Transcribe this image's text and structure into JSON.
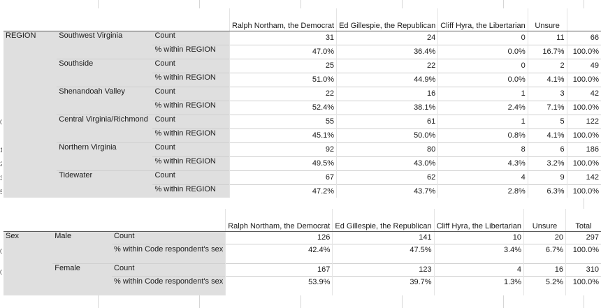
{
  "table1": {
    "headers": [
      "Ralph Northam, the Democrat",
      "Ed Gillespie, the Republican",
      "Cliff Hyra, the Libertarian",
      "Unsure",
      ""
    ],
    "group_label": "REGION",
    "rows": [
      {
        "category": "Southwest Virginia",
        "stat": "Count",
        "values": [
          "31",
          "24",
          "0",
          "11",
          "66"
        ]
      },
      {
        "category": "",
        "stat": "% within REGION",
        "values": [
          "47.0%",
          "36.4%",
          "0.0%",
          "16.7%",
          "100.0%"
        ]
      },
      {
        "category": "Southside",
        "stat": "Count",
        "values": [
          "25",
          "22",
          "0",
          "2",
          "49"
        ]
      },
      {
        "category": "",
        "stat": "% within REGION",
        "values": [
          "51.0%",
          "44.9%",
          "0.0%",
          "4.1%",
          "100.0%"
        ]
      },
      {
        "category": "Shenandoah Valley",
        "stat": "Count",
        "values": [
          "22",
          "16",
          "1",
          "3",
          "42"
        ]
      },
      {
        "category": "",
        "stat": "% within REGION",
        "values": [
          "52.4%",
          "38.1%",
          "2.4%",
          "7.1%",
          "100.0%"
        ]
      },
      {
        "category": "Central Virginia/Richmond",
        "stat": "Count",
        "values": [
          "55",
          "61",
          "1",
          "5",
          "122"
        ]
      },
      {
        "category": "",
        "stat": "% within REGION",
        "values": [
          "45.1%",
          "50.0%",
          "0.8%",
          "4.1%",
          "100.0%"
        ]
      },
      {
        "category": "Northern Virginia",
        "stat": "Count",
        "values": [
          "92",
          "80",
          "8",
          "6",
          "186"
        ]
      },
      {
        "category": "",
        "stat": "% within REGION",
        "values": [
          "49.5%",
          "43.0%",
          "4.3%",
          "3.2%",
          "100.0%"
        ]
      },
      {
        "category": "Tidewater",
        "stat": "Count",
        "values": [
          "67",
          "62",
          "4",
          "9",
          "142"
        ]
      },
      {
        "category": "",
        "stat": "% within REGION",
        "values": [
          "47.2%",
          "43.7%",
          "2.8%",
          "6.3%",
          "100.0%"
        ]
      }
    ]
  },
  "table2": {
    "headers": [
      "Ralph Northam, the Democrat",
      "Ed Gillespie, the Republican",
      "Cliff Hyra, the Libertarian",
      "Unsure",
      "Total"
    ],
    "group_label": "Sex",
    "rows": [
      {
        "category": "Male",
        "stat": "Count",
        "values": [
          "126",
          "141",
          "10",
          "20",
          "297"
        ]
      },
      {
        "category": "",
        "stat": "% within Code respondent's sex",
        "values": [
          "42.4%",
          "47.5%",
          "3.4%",
          "6.7%",
          "100.0%"
        ]
      },
      {
        "category": "Female",
        "stat": "Count",
        "values": [
          "167",
          "123",
          "4",
          "16",
          "310"
        ]
      },
      {
        "category": "",
        "stat": "% within Code respondent's sex",
        "values": [
          "53.9%",
          "39.7%",
          "1.3%",
          "5.2%",
          "100.0%"
        ]
      }
    ]
  },
  "gutter": [
    "0",
    "1",
    "2",
    "3",
    "5",
    "0",
    "0"
  ]
}
